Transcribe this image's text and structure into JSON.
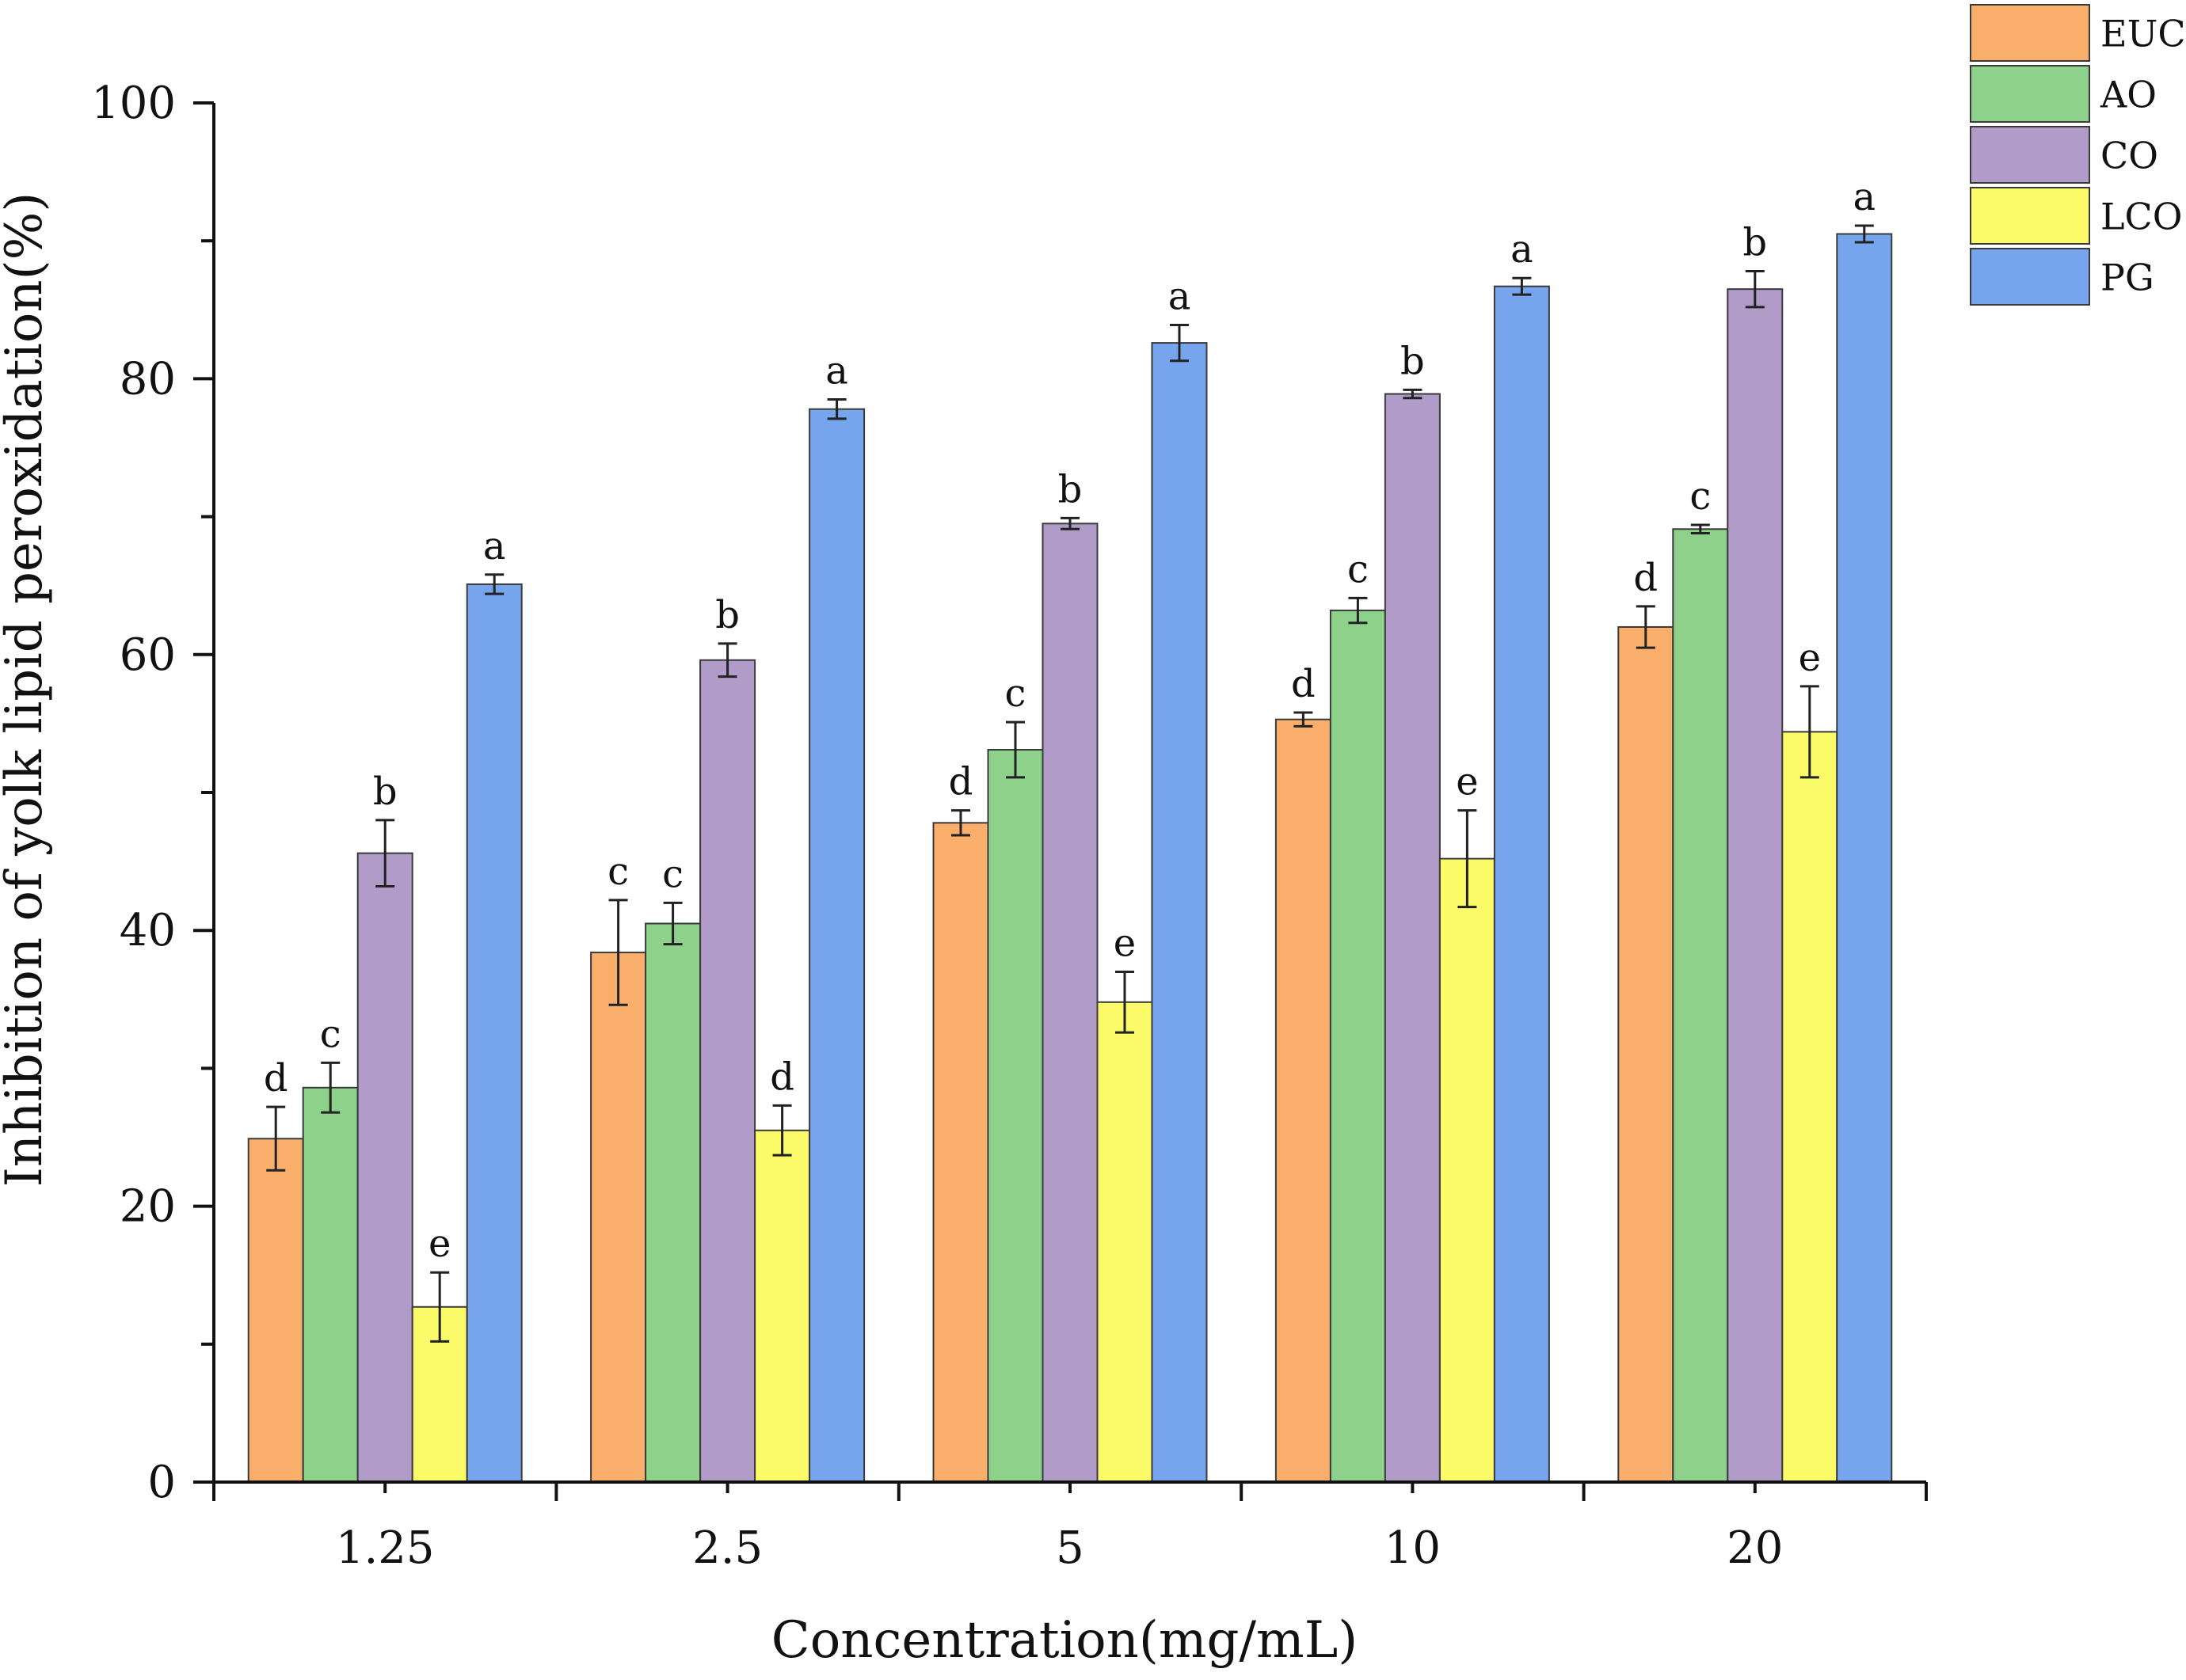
{
  "chart_data": {
    "type": "bar",
    "title": "",
    "xlabel": "Concentration(mg/mL)",
    "ylabel": "Inhibition of yolk lipid peroxidation(%)",
    "ylim": [
      0,
      100
    ],
    "yticks": [
      0,
      20,
      40,
      60,
      80,
      100
    ],
    "categories": [
      "1.25",
      "2.5",
      "5",
      "10",
      "20"
    ],
    "series": [
      {
        "name": "EUC",
        "color": "#FAAE6B",
        "values": [
          24.9,
          38.4,
          47.8,
          55.3,
          62.0
        ],
        "errors": [
          2.3,
          3.8,
          0.9,
          0.5,
          1.5
        ],
        "sig": [
          "d",
          "c",
          "d",
          "d",
          "d"
        ]
      },
      {
        "name": "AO",
        "color": "#8ED18A",
        "values": [
          28.6,
          40.5,
          53.1,
          63.2,
          69.1
        ],
        "errors": [
          1.8,
          1.5,
          2.0,
          0.9,
          0.3
        ],
        "sig": [
          "c",
          "c",
          "c",
          "c",
          "c"
        ]
      },
      {
        "name": "CO",
        "color": "#B09BC9",
        "values": [
          45.6,
          59.6,
          69.5,
          78.9,
          86.5
        ],
        "errors": [
          2.4,
          1.2,
          0.4,
          0.3,
          1.3
        ],
        "sig": [
          "b",
          "b",
          "b",
          "b",
          "b"
        ]
      },
      {
        "name": "LCO",
        "color": "#FBFB6A",
        "values": [
          12.7,
          25.5,
          34.8,
          45.2,
          54.4
        ],
        "errors": [
          2.5,
          1.8,
          2.2,
          3.5,
          3.3
        ],
        "sig": [
          "e",
          "d",
          "e",
          "e",
          "e"
        ]
      },
      {
        "name": "PG",
        "color": "#76A5EE",
        "values": [
          65.1,
          77.8,
          82.6,
          86.7,
          90.5
        ],
        "errors": [
          0.7,
          0.7,
          1.3,
          0.6,
          0.6
        ],
        "sig": [
          "a",
          "a",
          "a",
          "a",
          "a"
        ]
      }
    ],
    "legend_position": "top-right",
    "grid": false
  }
}
